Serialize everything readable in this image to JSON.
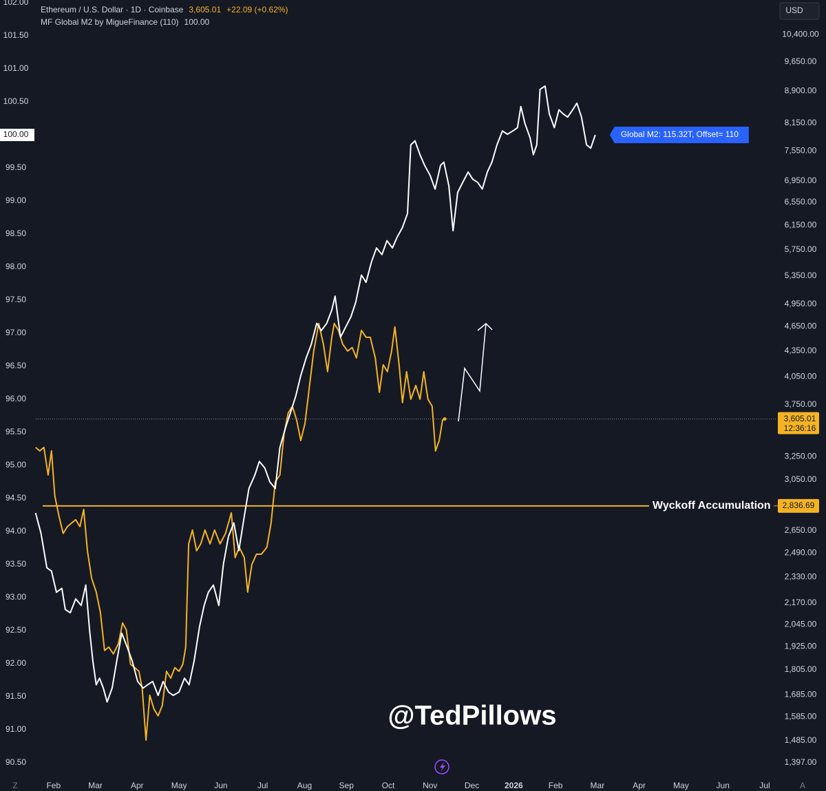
{
  "chart_data": {
    "type": "line",
    "xlim": [
      -0.28,
      18.28
    ],
    "xticks": [
      {
        "value": 1,
        "label": "Feb"
      },
      {
        "value": 2,
        "label": "Mar"
      },
      {
        "value": 3,
        "label": "Apr"
      },
      {
        "value": 4,
        "label": "May"
      },
      {
        "value": 5,
        "label": "Jun"
      },
      {
        "value": 6,
        "label": "Jul"
      },
      {
        "value": 7,
        "label": "Aug"
      },
      {
        "value": 8,
        "label": "Sep"
      },
      {
        "value": 9,
        "label": "Oct"
      },
      {
        "value": 10,
        "label": "Nov"
      },
      {
        "value": 11,
        "label": "Dec"
      },
      {
        "value": 12,
        "label": "2026"
      },
      {
        "value": 13,
        "label": "Feb"
      },
      {
        "value": 14,
        "label": "Mar"
      },
      {
        "value": 15,
        "label": "Apr"
      },
      {
        "value": 16,
        "label": "May"
      },
      {
        "value": 17,
        "label": "Jun"
      },
      {
        "value": 18,
        "label": "Jul"
      }
    ],
    "ylim": [
      90.5,
      102
    ],
    "yticks": [
      {
        "value": 90.5,
        "label": "90.50"
      },
      {
        "value": 91,
        "label": "91.00"
      },
      {
        "value": 91.5,
        "label": "91.50"
      },
      {
        "value": 92,
        "label": "92.00"
      },
      {
        "value": 92.5,
        "label": "92.50"
      },
      {
        "value": 93,
        "label": "93.00"
      },
      {
        "value": 93.5,
        "label": "93.50"
      },
      {
        "value": 94,
        "label": "94.00"
      },
      {
        "value": 94.5,
        "label": "94.50"
      },
      {
        "value": 95,
        "label": "95.00"
      },
      {
        "value": 95.5,
        "label": "95.50"
      },
      {
        "value": 96,
        "label": "96.00"
      },
      {
        "value": 96.5,
        "label": "96.50"
      },
      {
        "value": 97,
        "label": "97.00"
      },
      {
        "value": 97.5,
        "label": "97.50"
      },
      {
        "value": 98,
        "label": "98.00"
      },
      {
        "value": 98.5,
        "label": "98.50"
      },
      {
        "value": 99,
        "label": "99.00"
      },
      {
        "value": 99.5,
        "label": "99.50"
      },
      {
        "value": 100,
        "label": "100.00"
      },
      {
        "value": 100.5,
        "label": "100.50"
      },
      {
        "value": 101,
        "label": "101.00"
      },
      {
        "value": 101.5,
        "label": "101.50"
      },
      {
        "value": 102,
        "label": "102.00"
      }
    ],
    "y2lim": [
      1397,
      11360
    ],
    "y2_log": true,
    "y2ticks": [
      {
        "value": 1397,
        "label": "1,397.00"
      },
      {
        "value": 1485,
        "label": "1,485.00"
      },
      {
        "value": 1585,
        "label": "1,585.00"
      },
      {
        "value": 1685,
        "label": "1,685.00"
      },
      {
        "value": 1805,
        "label": "1,805.00"
      },
      {
        "value": 1925,
        "label": "1,925.00"
      },
      {
        "value": 2045,
        "label": "2,045.00"
      },
      {
        "value": 2170,
        "label": "2,170.00"
      },
      {
        "value": 2330,
        "label": "2,330.00"
      },
      {
        "value": 2490,
        "label": "2,490.00"
      },
      {
        "value": 2650,
        "label": "2,650.00"
      },
      {
        "value": 3050,
        "label": "3,050.00"
      },
      {
        "value": 3250,
        "label": "3,250.00"
      },
      {
        "value": 3750,
        "label": "3,750.00"
      },
      {
        "value": 4050,
        "label": "4,050.00"
      },
      {
        "value": 4350,
        "label": "4,350.00"
      },
      {
        "value": 4650,
        "label": "4,650.00"
      },
      {
        "value": 4950,
        "label": "4,950.00"
      },
      {
        "value": 5350,
        "label": "5,350.00"
      },
      {
        "value": 5750,
        "label": "5,750.00"
      },
      {
        "value": 6150,
        "label": "6,150.00"
      },
      {
        "value": 6550,
        "label": "6,550.00"
      },
      {
        "value": 6950,
        "label": "6,950.00"
      },
      {
        "value": 7550,
        "label": "7,550.00"
      },
      {
        "value": 8150,
        "label": "8,150.00"
      },
      {
        "value": 8900,
        "label": "8,900.00"
      },
      {
        "value": 9650,
        "label": "9,650.00"
      },
      {
        "value": 10400,
        "label": "10,400.00"
      }
    ],
    "grid": false,
    "currency": "USD",
    "price_change": "+22.09 (+0.62%)",
    "last_price_label": "3,605.01",
    "countdown": "12:36:16",
    "indicator_value_label": "100.00",
    "m2_label": "Global M2: 115.32T, Offset= 110",
    "hline": {
      "label": "Wyckoff Accumulation",
      "value": 2836.69,
      "value_label": "2,836.69",
      "color": "#f5b324"
    },
    "watermark": "@TedPillows",
    "scale_buttons": [
      "Z",
      "A"
    ],
    "series": [
      {
        "name": "Ethereum / U.S. Dollar · 1D · Coinbase",
        "color": "#f5b324",
        "axis": "y2",
        "x": [
          0.57,
          0.67,
          0.77,
          0.87,
          0.95,
          1.03,
          1.13,
          1.23,
          1.33,
          1.43,
          1.53,
          1.63,
          1.72,
          1.81,
          1.91,
          2.02,
          2.12,
          2.22,
          2.32,
          2.43,
          2.55,
          2.65,
          2.74,
          2.84,
          2.94,
          3.04,
          3.12,
          3.21,
          3.3,
          3.4,
          3.5,
          3.6,
          3.7,
          3.8,
          3.9,
          4.0,
          4.09,
          4.16,
          4.23,
          4.32,
          4.42,
          4.52,
          4.62,
          4.74,
          4.85,
          4.98,
          5.11,
          5.25,
          5.34,
          5.44,
          5.56,
          5.64,
          5.74,
          5.85,
          5.97,
          6.1,
          6.2,
          6.3,
          6.41,
          6.51,
          6.61,
          6.71,
          6.81,
          6.91,
          7.01,
          7.12,
          7.22,
          7.34,
          7.45,
          7.55,
          7.65,
          7.71,
          7.81,
          7.91,
          8.03,
          8.14,
          8.24,
          8.36,
          8.47,
          8.57,
          8.69,
          8.79,
          8.88,
          8.98,
          9.08,
          9.16,
          9.26,
          9.34,
          9.44,
          9.54,
          9.66,
          9.76,
          9.85,
          9.95,
          10.05,
          10.13,
          10.22,
          10.3,
          10.35
        ],
        "values": [
          3333,
          3301,
          3333,
          3089,
          3301,
          2918,
          2757,
          2629,
          2679,
          2705,
          2731,
          2679,
          2809,
          2507,
          2324,
          2237,
          2113,
          1904,
          1922,
          1886,
          1940,
          2054,
          2016,
          1833,
          1816,
          1798,
          1715,
          1487,
          1683,
          1620,
          1590,
          1636,
          1798,
          1764,
          1816,
          1798,
          1833,
          1922,
          2555,
          2654,
          2507,
          2555,
          2654,
          2555,
          2654,
          2555,
          2629,
          2783,
          2460,
          2531,
          2460,
          2237,
          2414,
          2483,
          2483,
          2531,
          2705,
          3031,
          3089,
          3462,
          3665,
          3735,
          3596,
          3397,
          3562,
          3954,
          4348,
          4691,
          4432,
          4107,
          4516,
          4691,
          4603,
          4432,
          4348,
          4390,
          4266,
          4603,
          4516,
          4516,
          4266,
          3880,
          4186,
          4107,
          4348,
          4647,
          4186,
          3771,
          4107,
          3807,
          3954,
          3807,
          4107,
          3807,
          3735,
          3301,
          3397,
          3596,
          3605.01
        ]
      },
      {
        "name": "MF Global M2 by MigueFinance (110)",
        "color": "#ffffff",
        "x": [
          0.57,
          0.7,
          0.84,
          0.95,
          1.07,
          1.2,
          1.28,
          1.4,
          1.53,
          1.66,
          1.77,
          1.86,
          1.94,
          2.02,
          2.1,
          2.19,
          2.28,
          2.4,
          2.51,
          2.63,
          2.76,
          2.88,
          3.01,
          3.14,
          3.25,
          3.37,
          3.5,
          3.62,
          3.75,
          3.86,
          4.0,
          4.13,
          4.24,
          4.36,
          4.49,
          4.6,
          4.7,
          4.82,
          4.95,
          5.06,
          5.18,
          5.31,
          5.43,
          5.56,
          5.67,
          5.81,
          5.92,
          6.05,
          6.17,
          6.3,
          6.41,
          6.55,
          6.66,
          6.79,
          6.91,
          7.04,
          7.16,
          7.29,
          7.4,
          7.53,
          7.65,
          7.73,
          7.86,
          7.98,
          8.11,
          8.22,
          8.36,
          8.47,
          8.6,
          8.72,
          8.85,
          8.97,
          9.1,
          9.21,
          9.34,
          9.46,
          9.54,
          9.64,
          9.76,
          9.87,
          10.0,
          10.12,
          10.25,
          10.33,
          10.45,
          10.55,
          10.66,
          10.78,
          10.91,
          11.02,
          11.14,
          11.25,
          11.37,
          11.48,
          11.6,
          11.73,
          11.85,
          11.98,
          12.09,
          12.17,
          12.27,
          12.39,
          12.47,
          12.55,
          12.63,
          12.75,
          12.85,
          12.97,
          13.08,
          13.18,
          13.29,
          13.41,
          13.51,
          13.62,
          13.74,
          13.84,
          13.95
        ],
        "values": [
          94.28,
          93.97,
          93.45,
          93.4,
          93.08,
          93.14,
          92.82,
          92.77,
          92.98,
          92.88,
          93.19,
          92.51,
          92.04,
          91.68,
          91.78,
          91.63,
          91.42,
          91.63,
          92.04,
          92.46,
          92.25,
          92.04,
          91.73,
          91.63,
          91.68,
          91.73,
          91.52,
          91.73,
          91.57,
          91.52,
          91.57,
          91.78,
          91.68,
          92.04,
          92.56,
          92.88,
          93.08,
          93.19,
          92.88,
          93.5,
          93.92,
          94.13,
          93.71,
          94.23,
          94.65,
          94.85,
          95.06,
          94.96,
          94.75,
          94.65,
          95.27,
          95.58,
          95.79,
          96.05,
          96.36,
          96.63,
          96.83,
          97.15,
          97.04,
          97.15,
          97.35,
          97.56,
          96.94,
          97.09,
          97.25,
          97.46,
          97.88,
          97.77,
          98.08,
          98.29,
          98.19,
          98.4,
          98.29,
          98.45,
          98.6,
          98.81,
          99.85,
          99.91,
          99.7,
          99.54,
          99.39,
          99.18,
          99.54,
          99.59,
          99.23,
          98.55,
          99.13,
          99.28,
          99.44,
          99.33,
          99.28,
          99.18,
          99.44,
          99.59,
          99.85,
          100.06,
          100.01,
          100.06,
          100.11,
          100.43,
          100.17,
          99.96,
          99.7,
          99.85,
          100.69,
          100.74,
          100.32,
          100.11,
          100.38,
          100.32,
          100.27,
          100.38,
          100.48,
          100.27,
          99.85,
          99.8,
          100.0
        ]
      }
    ]
  }
}
